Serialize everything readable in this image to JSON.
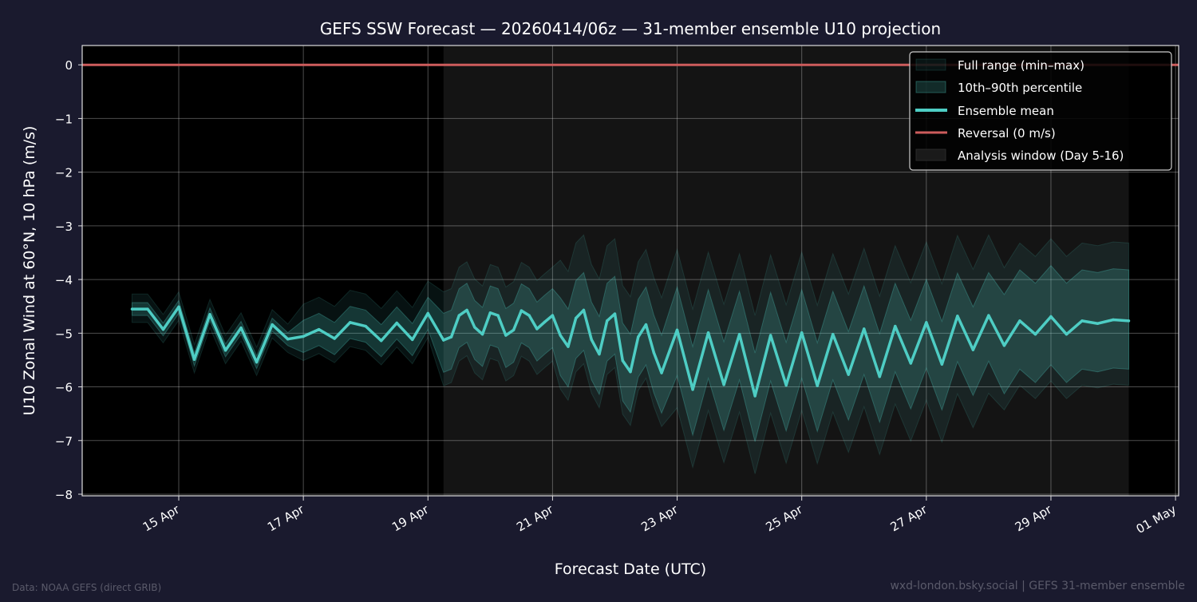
{
  "chart_data": {
    "type": "line",
    "title": "GEFS SSW Forecast — 20260414/06z — 31-member ensemble U10 projection",
    "xlabel": "Forecast Date (UTC)",
    "ylabel": "U10 Zonal Wind at 60°N, 10 hPa (m/s)",
    "ylim": [
      -8.03,
      0.36
    ],
    "xlim": [
      "2026-04-13T10:48:00Z",
      "2026-05-01T01:12:00Z"
    ],
    "yticks": [
      0,
      -1,
      -2,
      -3,
      -4,
      -5,
      -6,
      -7,
      -8
    ],
    "ytick_labels": [
      "0",
      "−1",
      "−2",
      "−3",
      "−4",
      "−5",
      "−6",
      "−7",
      "−8"
    ],
    "xticks": [
      "2026-04-15T00:00:00Z",
      "2026-04-17T00:00:00Z",
      "2026-04-19T00:00:00Z",
      "2026-04-21T00:00:00Z",
      "2026-04-23T00:00:00Z",
      "2026-04-25T00:00:00Z",
      "2026-04-27T00:00:00Z",
      "2026-04-29T00:00:00Z",
      "2026-05-01T00:00:00Z"
    ],
    "xtick_labels": [
      "15 Apr",
      "17 Apr",
      "19 Apr",
      "21 Apr",
      "23 Apr",
      "25 Apr",
      "27 Apr",
      "29 Apr",
      "01 May"
    ],
    "grid": true,
    "legend_placement": "top-right",
    "colors": {
      "mean": "#4ecdc4",
      "band": "#4ecdc4",
      "reversal": "#cd5c5c",
      "analysis_window": "#141414",
      "plot_bg": "#000000",
      "figure_bg": "#1a1a2e"
    },
    "reversal_value": 0,
    "analysis_window": {
      "start": "2026-04-19T06:00:00Z",
      "end": "2026-04-30T06:00:00Z"
    },
    "x": [
      "2026-04-14T06:00:00Z",
      "2026-04-14T12:00:00Z",
      "2026-04-14T18:00:00Z",
      "2026-04-15T00:00:00Z",
      "2026-04-15T06:00:00Z",
      "2026-04-15T12:00:00Z",
      "2026-04-15T18:00:00Z",
      "2026-04-16T00:00:00Z",
      "2026-04-16T06:00:00Z",
      "2026-04-16T12:00:00Z",
      "2026-04-16T18:00:00Z",
      "2026-04-17T00:00:00Z",
      "2026-04-17T06:00:00Z",
      "2026-04-17T12:00:00Z",
      "2026-04-17T18:00:00Z",
      "2026-04-18T00:00:00Z",
      "2026-04-18T06:00:00Z",
      "2026-04-18T12:00:00Z",
      "2026-04-18T18:00:00Z",
      "2026-04-19T00:00:00Z",
      "2026-04-19T06:00:00Z",
      "2026-04-19T09:00:00Z",
      "2026-04-19T12:00:00Z",
      "2026-04-19T15:00:00Z",
      "2026-04-19T18:00:00Z",
      "2026-04-19T21:00:00Z",
      "2026-04-20T00:00:00Z",
      "2026-04-20T03:00:00Z",
      "2026-04-20T06:00:00Z",
      "2026-04-20T09:00:00Z",
      "2026-04-20T12:00:00Z",
      "2026-04-20T15:00:00Z",
      "2026-04-20T18:00:00Z",
      "2026-04-20T21:00:00Z",
      "2026-04-21T00:00:00Z",
      "2026-04-21T03:00:00Z",
      "2026-04-21T06:00:00Z",
      "2026-04-21T09:00:00Z",
      "2026-04-21T12:00:00Z",
      "2026-04-21T15:00:00Z",
      "2026-04-21T18:00:00Z",
      "2026-04-21T21:00:00Z",
      "2026-04-22T00:00:00Z",
      "2026-04-22T03:00:00Z",
      "2026-04-22T06:00:00Z",
      "2026-04-22T09:00:00Z",
      "2026-04-22T12:00:00Z",
      "2026-04-22T15:00:00Z",
      "2026-04-22T18:00:00Z",
      "2026-04-23T00:00:00Z",
      "2026-04-23T06:00:00Z",
      "2026-04-23T12:00:00Z",
      "2026-04-23T18:00:00Z",
      "2026-04-24T00:00:00Z",
      "2026-04-24T06:00:00Z",
      "2026-04-24T12:00:00Z",
      "2026-04-24T18:00:00Z",
      "2026-04-25T00:00:00Z",
      "2026-04-25T06:00:00Z",
      "2026-04-25T12:00:00Z",
      "2026-04-25T18:00:00Z",
      "2026-04-26T00:00:00Z",
      "2026-04-26T06:00:00Z",
      "2026-04-26T12:00:00Z",
      "2026-04-26T18:00:00Z",
      "2026-04-27T00:00:00Z",
      "2026-04-27T06:00:00Z",
      "2026-04-27T12:00:00Z",
      "2026-04-27T18:00:00Z",
      "2026-04-28T00:00:00Z",
      "2026-04-28T06:00:00Z",
      "2026-04-28T12:00:00Z",
      "2026-04-28T18:00:00Z",
      "2026-04-29T00:00:00Z",
      "2026-04-29T06:00:00Z",
      "2026-04-29T12:00:00Z",
      "2026-04-29T18:00:00Z",
      "2026-04-30T00:00:00Z",
      "2026-04-30T06:00:00Z"
    ],
    "series": [
      {
        "name": "Ensemble mean",
        "values": [
          -4.55,
          -4.55,
          -4.93,
          -4.51,
          -5.49,
          -4.65,
          -5.32,
          -4.9,
          -5.54,
          -4.84,
          -5.11,
          -5.06,
          -4.93,
          -5.1,
          -4.8,
          -4.87,
          -5.14,
          -4.81,
          -5.12,
          -4.63,
          -5.13,
          -5.07,
          -4.67,
          -4.57,
          -4.89,
          -5.02,
          -4.62,
          -4.67,
          -5.04,
          -4.94,
          -4.58,
          -4.67,
          -4.92,
          -4.79,
          -4.67,
          -5.04,
          -5.25,
          -4.72,
          -4.57,
          -5.12,
          -5.39,
          -4.77,
          -4.64,
          -5.51,
          -5.72,
          -5.07,
          -4.84,
          -5.36,
          -5.74,
          -4.94,
          -6.05,
          -4.99,
          -5.96,
          -5.02,
          -6.17,
          -5.04,
          -5.97,
          -4.99,
          -5.98,
          -5.02,
          -5.77,
          -4.92,
          -5.81,
          -4.87,
          -5.56,
          -4.8,
          -5.58,
          -4.68,
          -5.31,
          -4.67,
          -5.23,
          -4.77,
          -5.02,
          -4.69,
          -5.02,
          -4.77,
          -4.82,
          -4.75,
          -4.77
        ]
      },
      {
        "name": "10th–90th percentile",
        "upper": [
          -4.43,
          -4.43,
          -4.81,
          -4.39,
          -5.37,
          -4.53,
          -5.2,
          -4.78,
          -5.42,
          -4.72,
          -4.99,
          -4.76,
          -4.63,
          -4.8,
          -4.5,
          -4.57,
          -4.84,
          -4.51,
          -4.82,
          -4.33,
          -4.63,
          -4.57,
          -4.17,
          -4.07,
          -4.39,
          -4.52,
          -4.12,
          -4.17,
          -4.54,
          -4.44,
          -4.08,
          -4.17,
          -4.42,
          -4.29,
          -4.17,
          -4.34,
          -4.55,
          -4.02,
          -3.87,
          -4.42,
          -4.69,
          -4.07,
          -3.94,
          -4.81,
          -5.02,
          -4.37,
          -4.14,
          -4.66,
          -5.04,
          -4.14,
          -5.25,
          -4.19,
          -5.16,
          -4.22,
          -5.37,
          -4.24,
          -5.17,
          -4.19,
          -5.18,
          -4.22,
          -4.97,
          -4.12,
          -5.01,
          -4.07,
          -4.76,
          -4.0,
          -4.78,
          -3.88,
          -4.51,
          -3.87,
          -4.28,
          -3.82,
          -4.07,
          -3.74,
          -4.07,
          -3.82,
          -3.87,
          -3.8,
          -3.82
        ],
        "lower": [
          -4.67,
          -4.67,
          -5.05,
          -4.63,
          -5.61,
          -4.77,
          -5.44,
          -5.02,
          -5.66,
          -4.96,
          -5.23,
          -5.36,
          -5.23,
          -5.4,
          -5.1,
          -5.17,
          -5.44,
          -5.11,
          -5.42,
          -4.93,
          -5.73,
          -5.67,
          -5.27,
          -5.17,
          -5.49,
          -5.62,
          -5.22,
          -5.27,
          -5.64,
          -5.54,
          -5.18,
          -5.27,
          -5.52,
          -5.39,
          -5.27,
          -5.79,
          -6.0,
          -5.47,
          -5.32,
          -5.87,
          -6.14,
          -5.52,
          -5.39,
          -6.26,
          -6.47,
          -5.82,
          -5.59,
          -6.11,
          -6.49,
          -5.79,
          -6.9,
          -5.84,
          -6.81,
          -5.87,
          -7.02,
          -5.89,
          -6.82,
          -5.84,
          -6.83,
          -5.87,
          -6.62,
          -5.77,
          -6.66,
          -5.72,
          -6.41,
          -5.65,
          -6.43,
          -5.53,
          -6.16,
          -5.52,
          -6.13,
          -5.67,
          -5.92,
          -5.59,
          -5.92,
          -5.67,
          -5.72,
          -5.65,
          -5.67
        ]
      },
      {
        "name": "Full range (min–max)",
        "upper": [
          -4.27,
          -4.27,
          -4.65,
          -4.23,
          -5.21,
          -4.37,
          -5.04,
          -4.62,
          -5.26,
          -4.56,
          -4.83,
          -4.46,
          -4.33,
          -4.5,
          -4.2,
          -4.27,
          -4.54,
          -4.21,
          -4.52,
          -4.03,
          -4.23,
          -4.17,
          -3.77,
          -3.67,
          -3.99,
          -4.12,
          -3.72,
          -3.77,
          -4.14,
          -4.04,
          -3.68,
          -3.77,
          -4.02,
          -3.89,
          -3.77,
          -3.64,
          -3.85,
          -3.32,
          -3.17,
          -3.72,
          -3.99,
          -3.37,
          -3.24,
          -4.11,
          -4.32,
          -3.67,
          -3.44,
          -3.96,
          -4.34,
          -3.44,
          -4.55,
          -3.49,
          -4.46,
          -3.52,
          -4.67,
          -3.54,
          -4.47,
          -3.49,
          -4.48,
          -3.52,
          -4.27,
          -3.42,
          -4.31,
          -3.37,
          -4.06,
          -3.3,
          -4.08,
          -3.18,
          -3.81,
          -3.17,
          -3.78,
          -3.32,
          -3.57,
          -3.24,
          -3.57,
          -3.32,
          -3.37,
          -3.3,
          -3.32
        ],
        "lower": [
          -4.8,
          -4.8,
          -5.18,
          -4.76,
          -5.74,
          -4.9,
          -5.57,
          -5.15,
          -5.79,
          -5.09,
          -5.36,
          -5.51,
          -5.38,
          -5.55,
          -5.25,
          -5.32,
          -5.59,
          -5.26,
          -5.57,
          -5.08,
          -5.98,
          -5.92,
          -5.52,
          -5.42,
          -5.74,
          -5.87,
          -5.47,
          -5.52,
          -5.89,
          -5.79,
          -5.43,
          -5.52,
          -5.77,
          -5.64,
          -5.52,
          -6.04,
          -6.25,
          -5.72,
          -5.57,
          -6.12,
          -6.39,
          -5.77,
          -5.64,
          -6.51,
          -6.72,
          -6.07,
          -5.84,
          -6.36,
          -6.74,
          -6.39,
          -7.5,
          -6.44,
          -7.41,
          -6.47,
          -7.62,
          -6.49,
          -7.42,
          -6.44,
          -7.43,
          -6.47,
          -7.22,
          -6.37,
          -7.26,
          -6.32,
          -7.01,
          -6.25,
          -7.03,
          -6.13,
          -6.76,
          -6.12,
          -6.43,
          -5.97,
          -6.22,
          -5.89,
          -6.22,
          -5.97,
          -6.02,
          -5.95,
          -5.97
        ]
      }
    ],
    "legend": [
      "Full range (min–max)",
      "10th–90th percentile",
      "Ensemble mean",
      "Reversal (0 m/s)",
      "Analysis window (Day 5-16)"
    ]
  },
  "footer": {
    "source": "Data: NOAA GEFS (direct GRIB)",
    "credit": "wxd-london.bsky.social | GEFS 31-member ensemble"
  }
}
